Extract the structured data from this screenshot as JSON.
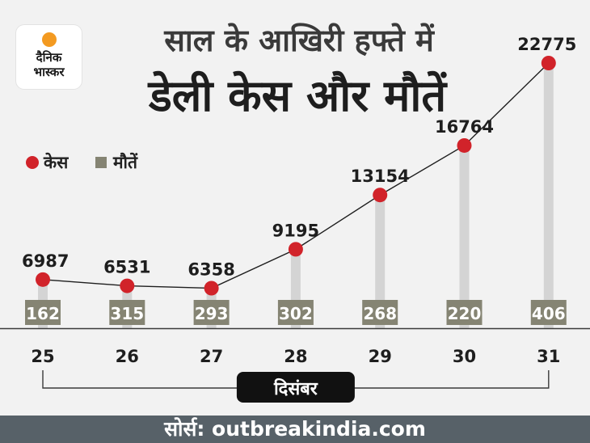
{
  "logo": {
    "line1": "दैनिक",
    "line2": "भास्कर"
  },
  "title_top": "साल के आखिरी हफ्ते में",
  "title_main": "डेली केस और मौतें",
  "legend": {
    "cases": "केस",
    "deaths": "मौतें"
  },
  "colors": {
    "cases": "#d1232a",
    "deaths": "#858473",
    "bar": "#d4d4d4",
    "footer": "#576168"
  },
  "chart_data": {
    "type": "line",
    "categories": [
      "25",
      "26",
      "27",
      "28",
      "29",
      "30",
      "31"
    ],
    "series": [
      {
        "name": "केस",
        "values": [
          6987,
          6531,
          6358,
          9195,
          13154,
          16764,
          22775
        ]
      },
      {
        "name": "मौतें",
        "values": [
          162,
          315,
          293,
          302,
          268,
          220,
          406
        ]
      }
    ],
    "x_group_label": "दिसंबर",
    "grid": false,
    "legend_position": "top-left"
  },
  "source": "सोर्स: outbreakindia.com"
}
